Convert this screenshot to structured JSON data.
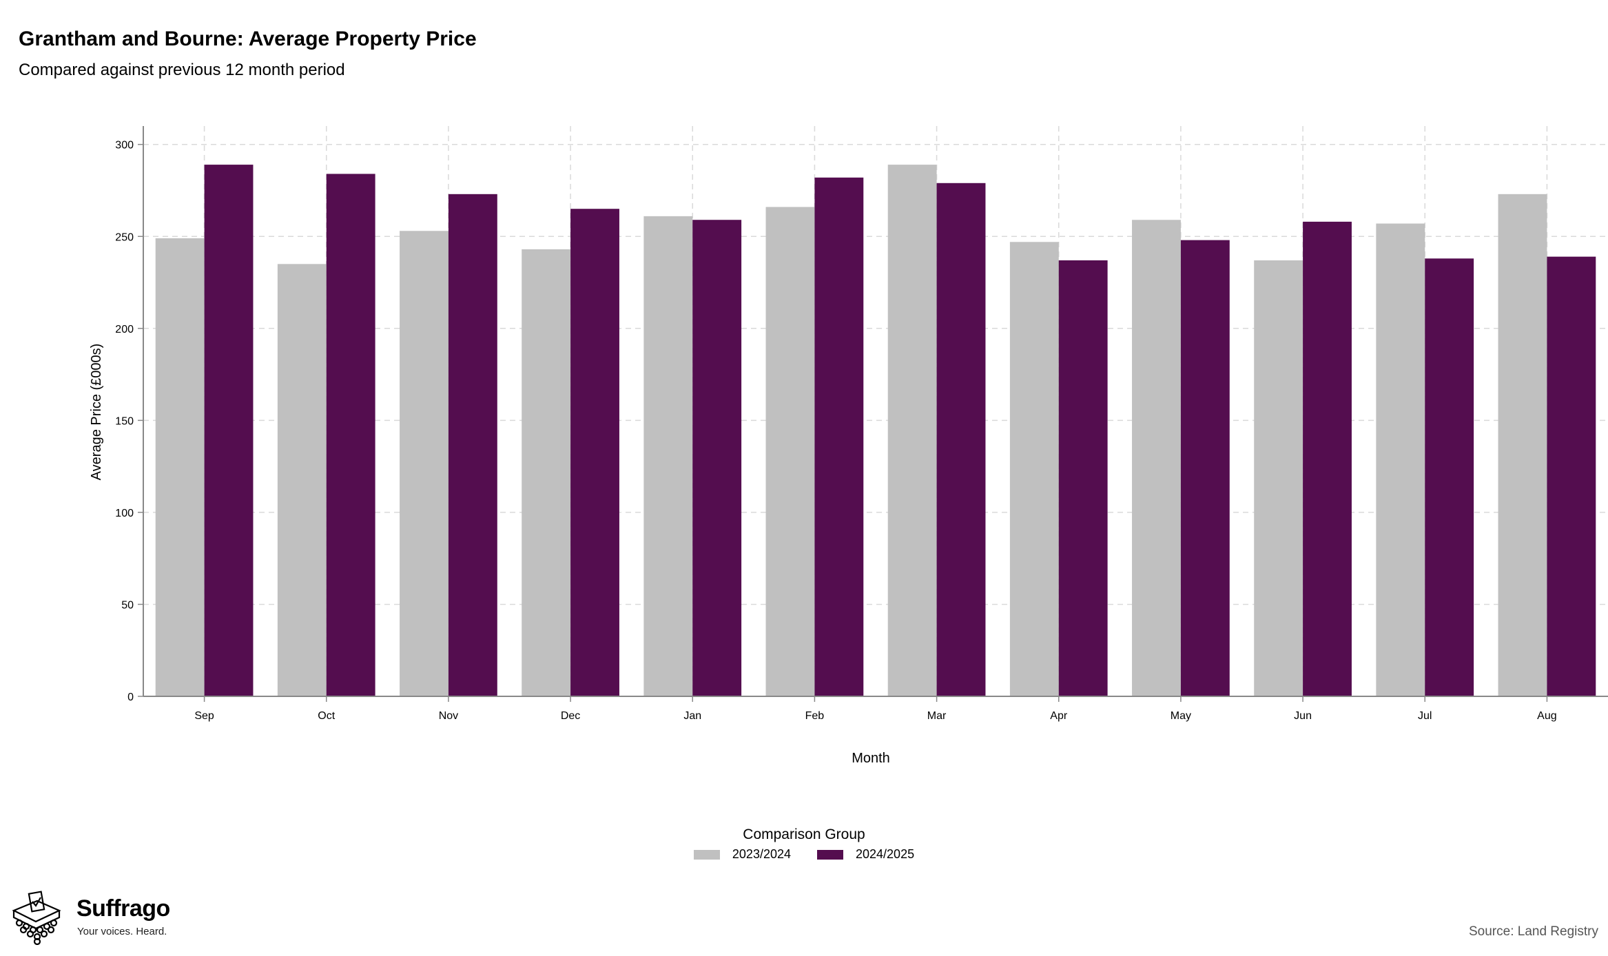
{
  "title": "Grantham and Bourne: Average Property Price",
  "subtitle": "Compared against previous 12 month period",
  "colors": {
    "series_2023": "#c0c0c0",
    "series_2024": "#540d4f",
    "grid": "#d9d9d9",
    "axis": "#888888"
  },
  "chart_data": {
    "type": "bar",
    "xlabel": "Month",
    "ylabel": "Average Price (£000s)",
    "ylim": [
      0,
      300
    ],
    "yticks": [
      0,
      50,
      100,
      150,
      200,
      250,
      300
    ],
    "grid": true,
    "legend_position": "bottom-center",
    "categories": [
      "Sep",
      "Oct",
      "Nov",
      "Dec",
      "Jan",
      "Feb",
      "Mar",
      "Apr",
      "May",
      "Jun",
      "Jul",
      "Aug"
    ],
    "series": [
      {
        "name": "2023/2024",
        "values": [
          249,
          235,
          253,
          243,
          261,
          266,
          289,
          247,
          259,
          237,
          257,
          273
        ]
      },
      {
        "name": "2024/2025",
        "values": [
          289,
          284,
          273,
          265,
          259,
          282,
          279,
          237,
          248,
          258,
          238,
          239
        ]
      }
    ]
  },
  "legend": {
    "title": "Comparison Group",
    "items": [
      "2023/2024",
      "2024/2025"
    ]
  },
  "logo": {
    "name": "Suffrago",
    "tagline": "Your voices. Heard."
  },
  "source": "Source: Land Registry"
}
